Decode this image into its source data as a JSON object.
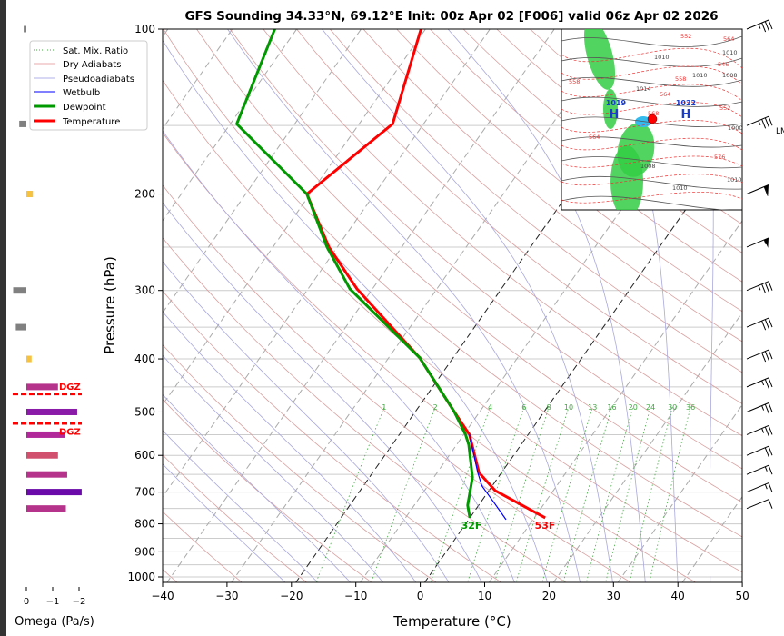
{
  "chart_data": {
    "type": "line",
    "title": "GFS Sounding 34.33°N, 69.12°E Init: 00z Apr 02 [F006] valid 06z Apr 02 2026",
    "xlabel": "Temperature (°C)",
    "ylabel": "Pressure (hPa)",
    "xlim": [
      -40,
      50
    ],
    "ylim": [
      1020,
      100
    ],
    "xticks": [
      "−40",
      "−30",
      "−20",
      "−10",
      "0",
      "10",
      "20",
      "30",
      "40",
      "50"
    ],
    "xtick_values": [
      -40,
      -30,
      -20,
      -10,
      0,
      10,
      20,
      30,
      40,
      50
    ],
    "yticks": [
      "100",
      "200",
      "300",
      "400",
      "500",
      "600",
      "700",
      "800",
      "900",
      "1000"
    ],
    "ytick_values": [
      100,
      200,
      300,
      400,
      500,
      600,
      700,
      800,
      900,
      1000
    ],
    "legend": {
      "placement": "top-left",
      "entries": [
        "Sat. Mix. Ratio",
        "Dry Adiabats",
        "Pseudoadiabats",
        "Wetbulb",
        "Dewpoint",
        "Temperature"
      ]
    },
    "mixing_ratio_labels": [
      "1",
      "2",
      "4",
      "6",
      "8",
      "10",
      "13",
      "16",
      "20",
      "24",
      "30",
      "36"
    ],
    "mixing_ratio_values": [
      1,
      2,
      4,
      6,
      8,
      10,
      13,
      16,
      20,
      24,
      30,
      36
    ],
    "series": [
      {
        "name": "Temperature",
        "color": "#ff0000",
        "pressure": [
          780,
          696,
          645,
          550,
          499,
          398,
          298,
          250,
          200,
          149,
          100
        ],
        "temperature": [
          11.7,
          1.0,
          -3.5,
          -9.1,
          -14,
          -25.2,
          -42.4,
          -51.3,
          -60.5,
          -54.8,
          -60.7
        ]
      },
      {
        "name": "Dewpoint",
        "color": "#009900",
        "pressure": [
          780,
          740,
          658,
          574,
          550,
          499,
          398,
          298,
          250,
          200,
          149,
          100
        ],
        "temperature": [
          0,
          -1.7,
          -4,
          -8.1,
          -9.7,
          -14,
          -25.2,
          -43.5,
          -51.6,
          -60.5,
          -79,
          -83.4
        ]
      },
      {
        "name": "Wetbulb",
        "color": "#0000ff",
        "pressure": [
          786,
          736,
          682,
          645,
          550
        ],
        "temperature": [
          5.8,
          2.4,
          -1.6,
          -3.7,
          -9.1
        ]
      }
    ],
    "annotations": {
      "surface_temp": "53F",
      "surface_dewpoint": "32F",
      "dgz": "DGZ",
      "side_label": "LM"
    },
    "omega": {
      "xlabel": "Omega (Pa/s)",
      "ticks": [
        "0",
        "−1",
        "−2"
      ],
      "tick_values": [
        0,
        -1,
        -2
      ],
      "bars": [
        {
          "pressure": 100,
          "value": 0.1,
          "color": "#808080"
        },
        {
          "pressure": 149,
          "value": 0.27,
          "color": "#808080"
        },
        {
          "pressure": 200,
          "value": -0.25,
          "color": "#f5c242"
        },
        {
          "pressure": 300,
          "value": 0.5,
          "color": "#808080"
        },
        {
          "pressure": 350,
          "value": 0.4,
          "color": "#808080"
        },
        {
          "pressure": 400,
          "value": -0.2,
          "color": "#f5c242"
        },
        {
          "pressure": 450,
          "value": -1.2,
          "color": "#b5338a"
        },
        {
          "pressure": 500,
          "value": -1.93,
          "color": "#8a1aa8"
        },
        {
          "pressure": 550,
          "value": -1.45,
          "color": "#b0289a"
        },
        {
          "pressure": 600,
          "value": -1.2,
          "color": "#d0506e"
        },
        {
          "pressure": 650,
          "value": -1.55,
          "color": "#b5338a"
        },
        {
          "pressure": 700,
          "value": -2.1,
          "color": "#6a0aa8"
        },
        {
          "pressure": 750,
          "value": -1.5,
          "color": "#b5338a"
        }
      ],
      "dgz_pressures": [
        464,
        525
      ]
    },
    "wind_barbs": [
      {
        "pressure": 100,
        "speed": 35
      },
      {
        "pressure": 150,
        "speed": 35
      },
      {
        "pressure": 200,
        "speed": 60
      },
      {
        "pressure": 250,
        "speed": 55
      },
      {
        "pressure": 300,
        "speed": 35
      },
      {
        "pressure": 350,
        "speed": 30
      },
      {
        "pressure": 400,
        "speed": 30
      },
      {
        "pressure": 450,
        "speed": 25
      },
      {
        "pressure": 500,
        "speed": 25
      },
      {
        "pressure": 550,
        "speed": 25
      },
      {
        "pressure": 600,
        "speed": 20
      },
      {
        "pressure": 650,
        "speed": 15
      },
      {
        "pressure": 700,
        "speed": 15
      },
      {
        "pressure": 750,
        "speed": 10
      }
    ],
    "map": {
      "highs": [
        {
          "value": "1019",
          "letter": "H"
        },
        {
          "value": "1022",
          "letter": "H"
        }
      ],
      "contour_labels": [
        "1010",
        "1014",
        "1010",
        "1010",
        "1008",
        "1000",
        "1008",
        "1010",
        "1010",
        "564",
        "558",
        "552",
        "546",
        "558",
        "564",
        "552",
        "576",
        "564",
        "568"
      ]
    }
  }
}
